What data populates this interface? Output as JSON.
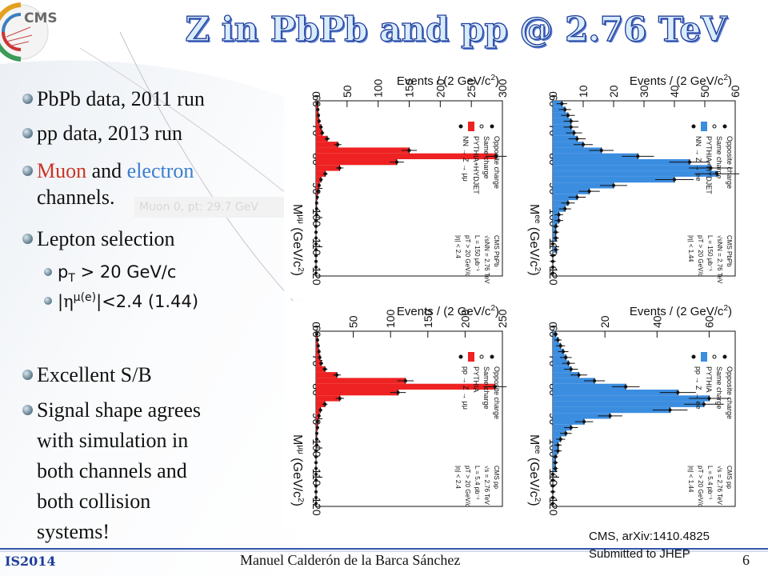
{
  "slide": {
    "title": "Z in PbPb and pp @ 2.76 TeV",
    "bullets": [
      {
        "text": "PbPb data, 2011 run"
      },
      {
        "text": "pp data, 2013 run"
      },
      {
        "muon": "Muon",
        "and": " and ",
        "electron": "electron",
        "rest_line1": " ",
        "line2": "channels."
      },
      {
        "text": "Lepton selection"
      },
      {
        "text": "Excellent S/B"
      },
      {
        "lines": [
          "Signal shape agrees",
          "with simulation  in",
          "both channels  and",
          "both collision",
          "systems!"
        ]
      }
    ],
    "sub_bullets": [
      "p",
      "T",
      " > 20 GeV/c",
      "|",
      "η",
      "μ(e)",
      "|<2.4 (1.44)"
    ],
    "watermark": "Muon 0, pt: 29.7 GeV",
    "reference": [
      "CMS, arXiv:1410.4825",
      "Submitted to JHEP"
    ],
    "footer": {
      "left": "IS2014",
      "center": "Manuel Calderón de la Barca Sánchez",
      "page": "6"
    }
  },
  "panels": [
    {
      "id": "pbpb-mumu",
      "ylabel": "Events / (2 GeV/c",
      "ylabel_sup": "2",
      "ylabel_end": ")",
      "xvar": "M",
      "xsup": "μμ",
      "xunit": " (GeV/c",
      "xunit_sup": "2",
      "xunit_end": ")",
      "yticks": [
        "0",
        "50",
        "100",
        "150",
        "200",
        "250",
        "300"
      ],
      "ymax": 300,
      "xticks": [
        "60",
        "70",
        "80",
        "90",
        "100",
        "110",
        "120"
      ],
      "legend": [
        "Opposite charge",
        "Same charge",
        "PYTHIA+HYDJET",
        "NN → Z → μμ"
      ],
      "info": [
        "CMS PbPb",
        "√sNN = 2.76 TeV",
        "L = 150 μb⁻¹",
        "pT > 20 GeV/c",
        "|η| < 2.4"
      ],
      "color": "#ee2222"
    },
    {
      "id": "pbpb-ee",
      "ylabel": "Events / (2 GeV/c",
      "ylabel_sup": "2",
      "ylabel_end": ")",
      "xvar": "M",
      "xsup": "ee",
      "xunit": " (GeV/c",
      "xunit_sup": "2",
      "xunit_end": ")",
      "yticks": [
        "0",
        "10",
        "20",
        "30",
        "40",
        "50",
        "60"
      ],
      "ymax": 60,
      "xticks": [
        "60",
        "70",
        "80",
        "90",
        "100",
        "110",
        "120"
      ],
      "legend": [
        "Opposite charge",
        "Same charge",
        "PYTHIA+HYDJET",
        "NN → Z → ee"
      ],
      "info": [
        "CMS PbPb",
        "√sNN = 2.76 TeV",
        "L = 150 μb⁻¹",
        "pT > 20 GeV/c",
        "|η| < 1.44"
      ],
      "color": "#3b8de0"
    },
    {
      "id": "pp-mumu",
      "ylabel": "Events / (2 GeV/c",
      "ylabel_sup": "2",
      "ylabel_end": ")",
      "xvar": "M",
      "xsup": "μμ",
      "xunit": " (GeV/c",
      "xunit_sup": "2",
      "xunit_end": ")",
      "yticks": [
        "0",
        "50",
        "100",
        "150",
        "200",
        "250"
      ],
      "ymax": 250,
      "xticks": [
        "60",
        "70",
        "80",
        "90",
        "100",
        "110",
        "120"
      ],
      "legend": [
        "Opposite charge",
        "Same charge",
        "PYTHIA",
        "pp → Z → μμ"
      ],
      "info": [
        "CMS pp",
        "√s = 2.76 TeV",
        "L = 5.4 pb⁻¹",
        "pT > 20 GeV/c",
        "|η| < 2.4"
      ],
      "color": "#ee2222"
    },
    {
      "id": "pp-ee",
      "ylabel": "Events / (2 GeV/c",
      "ylabel_sup": "2",
      "ylabel_end": ")",
      "xvar": "M",
      "xsup": "ee",
      "xunit": " (GeV/c",
      "xunit_sup": "2",
      "xunit_end": ")",
      "yticks": [
        "0",
        "20",
        "40",
        "60"
      ],
      "ymax": 70,
      "xticks": [
        "60",
        "70",
        "80",
        "90",
        "100",
        "110",
        "120"
      ],
      "legend": [
        "Opposite charge",
        "Same charge",
        "PYTHIA",
        "pp → Z → ee"
      ],
      "info": [
        "CMS pp",
        "√s = 2.76 TeV",
        "L = 5.4 pb⁻¹",
        "pT > 20 GeV/c",
        "|η| < 1.44"
      ],
      "color": "#3b8de0"
    }
  ],
  "histograms": {
    "pbpb-mumu": [
      2,
      3,
      4,
      5,
      8,
      10,
      18,
      35,
      150,
      290,
      130,
      38,
      15,
      8,
      5,
      3,
      2,
      1,
      1,
      1,
      0,
      0,
      0,
      0,
      0,
      0,
      0,
      0,
      0,
      0
    ],
    "pbpb-ee": [
      3,
      4,
      5,
      6,
      6,
      7,
      8,
      10,
      16,
      28,
      45,
      52,
      54,
      40,
      20,
      12,
      8,
      5,
      4,
      2,
      2,
      1,
      1,
      1,
      0,
      1,
      0,
      0,
      0,
      0
    ],
    "pp-mumu": [
      1,
      2,
      3,
      4,
      5,
      7,
      12,
      28,
      120,
      240,
      110,
      32,
      12,
      6,
      4,
      2,
      2,
      1,
      1,
      1,
      0,
      0,
      0,
      0,
      0,
      0,
      0,
      0,
      0,
      0
    ],
    "pp-ee": [
      1,
      2,
      3,
      4,
      5,
      6,
      7,
      10,
      16,
      28,
      48,
      60,
      58,
      45,
      22,
      12,
      7,
      5,
      3,
      2,
      2,
      1,
      1,
      1,
      0,
      0,
      0,
      0,
      0,
      0
    ]
  },
  "colors": {
    "title_fill": "#d9ecfb",
    "title_stroke": "#1f3d9a",
    "muon": "#cc3322",
    "electron": "#3a7fd0"
  }
}
